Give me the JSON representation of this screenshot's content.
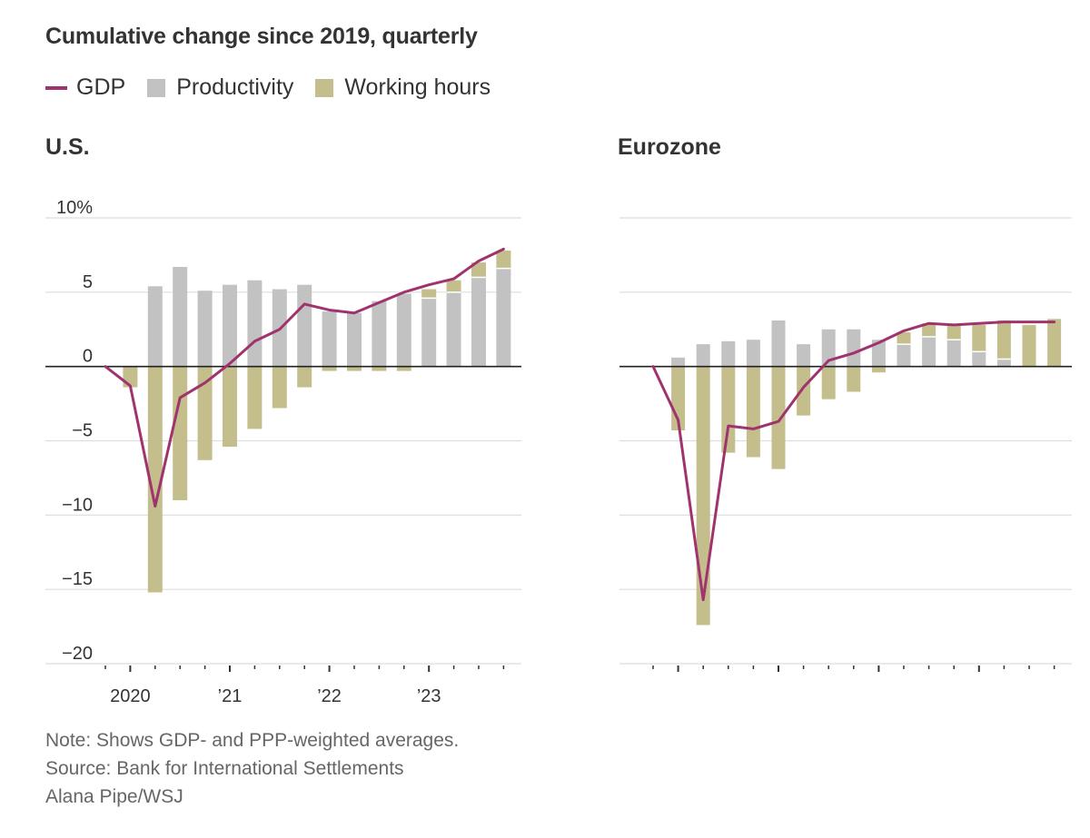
{
  "title": "Cumulative change since 2019, quarterly",
  "legend": [
    {
      "label": "GDP",
      "color": "#a0336e",
      "kind": "line"
    },
    {
      "label": "Productivity",
      "color": "#c2c2c2",
      "kind": "box"
    },
    {
      "label": "Working hours",
      "color": "#c4be8d",
      "kind": "box"
    }
  ],
  "colors": {
    "gdp": "#a0336e",
    "productivity": "#c2c2c2",
    "hours": "#c4be8d",
    "grid": "#dddddd",
    "zero": "#222222"
  },
  "chart_data": [
    {
      "type": "bar",
      "panel": "U.S.",
      "ylim": [
        -20,
        10
      ],
      "yticks": [
        10,
        5,
        0,
        -5,
        -10,
        -15,
        -20
      ],
      "ytick_labels": [
        "10%",
        "5",
        "0",
        "−5",
        "−10",
        "−15",
        "−20"
      ],
      "x_labels": [
        "2020",
        "’21",
        "’22",
        "’23"
      ],
      "x_label_positions": [
        1,
        5,
        9,
        13
      ],
      "n_quarters": 17,
      "series": [
        {
          "name": "Productivity",
          "values": [
            0,
            0,
            5.4,
            6.7,
            5.1,
            5.5,
            5.8,
            5.2,
            5.5,
            3.7,
            3.6,
            4.4,
            4.9,
            4.6,
            5.0,
            6.0,
            6.6
          ]
        },
        {
          "name": "Working hours",
          "values": [
            0,
            -1.4,
            -15.2,
            -9.0,
            -6.3,
            -5.4,
            -4.2,
            -2.8,
            -1.4,
            -0.3,
            -0.3,
            -0.3,
            -0.3,
            0.6,
            0.8,
            1.0,
            1.2
          ]
        },
        {
          "name": "GDP",
          "values": [
            0,
            -1.3,
            -9.4,
            -2.1,
            -1.1,
            0.2,
            1.7,
            2.5,
            4.2,
            3.8,
            3.6,
            4.3,
            5.0,
            5.5,
            5.9,
            7.1,
            7.9
          ]
        }
      ]
    },
    {
      "type": "bar",
      "panel": "Eurozone",
      "ylim": [
        -20,
        10
      ],
      "yticks": [
        10,
        5,
        0,
        -5,
        -10,
        -15,
        -20
      ],
      "ytick_labels": [],
      "x_labels": [],
      "x_label_positions": [],
      "n_quarters": 17,
      "series": [
        {
          "name": "Productivity",
          "values": [
            0,
            0.6,
            1.5,
            1.7,
            1.8,
            3.1,
            1.5,
            2.5,
            2.5,
            1.8,
            1.5,
            2.0,
            1.8,
            1.0,
            0.5,
            0,
            0
          ]
        },
        {
          "name": "Working hours",
          "values": [
            0,
            -4.3,
            -17.4,
            -5.8,
            -6.1,
            -6.9,
            -3.3,
            -2.2,
            -1.7,
            -0.4,
            0.8,
            0.9,
            1.0,
            1.8,
            2.6,
            2.8,
            3.2
          ]
        },
        {
          "name": "GDP",
          "values": [
            0,
            -3.6,
            -15.7,
            -4.0,
            -4.2,
            -3.7,
            -1.4,
            0.4,
            0.9,
            1.6,
            2.4,
            2.9,
            2.8,
            2.9,
            3.0,
            3.0,
            3.0
          ]
        }
      ]
    }
  ],
  "panels": {
    "us_title": "U.S.",
    "ez_title": "Eurozone"
  },
  "notes": {
    "note": "Note: Shows GDP- and PPP-weighted averages.",
    "source": "Source: Bank for International Settlements",
    "credit": "Alana Pipe/WSJ"
  }
}
